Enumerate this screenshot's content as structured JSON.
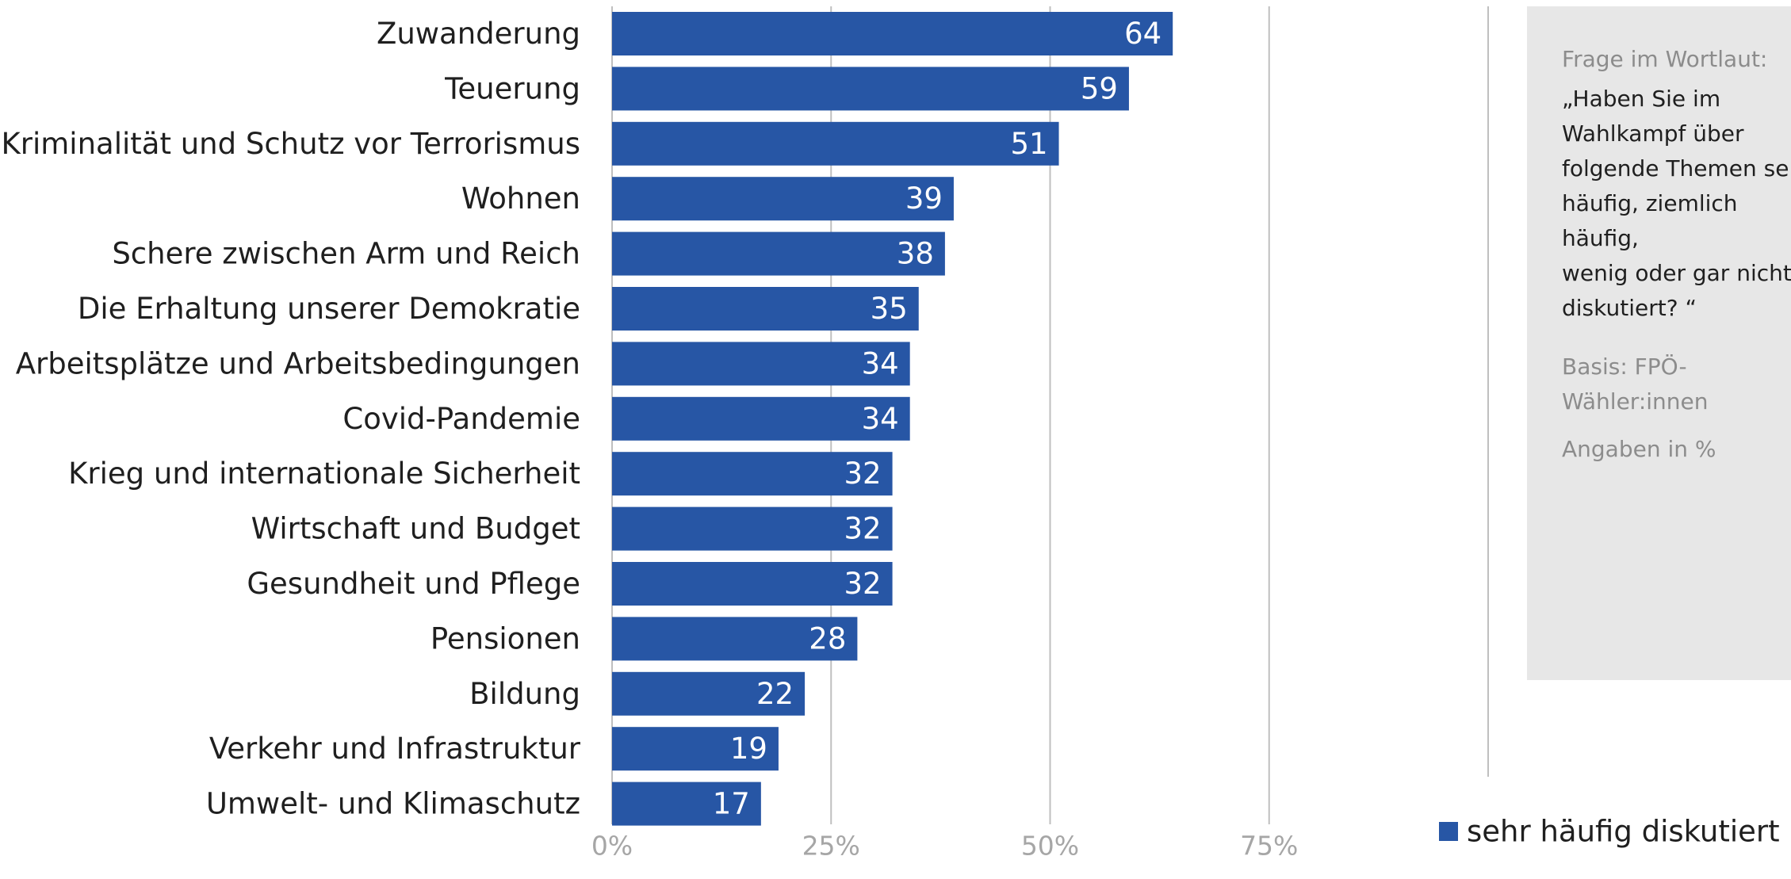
{
  "chart_data": {
    "type": "bar",
    "orientation": "horizontal",
    "categories": [
      "Zuwanderung",
      "Teuerung",
      "Kriminalität und Schutz vor Terrorismus",
      "Wohnen",
      "Schere zwischen Arm und Reich",
      "Die Erhaltung unserer Demokratie",
      "Arbeitsplätze und Arbeitsbedingungen",
      "Covid-Pandemie",
      "Krieg und internationale Sicherheit",
      "Wirtschaft und Budget",
      "Gesundheit und Pflege",
      "Pensionen",
      "Bildung",
      "Verkehr und Infrastruktur",
      "Umwelt- und Klimaschutz"
    ],
    "series": [
      {
        "name": "sehr häufig diskutiert",
        "values": [
          64,
          59,
          51,
          39,
          38,
          35,
          34,
          34,
          32,
          32,
          32,
          28,
          22,
          19,
          17
        ],
        "color": "#2756a5"
      }
    ],
    "xlim": [
      0,
      100
    ],
    "xticks": [
      "0%",
      "25%",
      "50%",
      "75%"
    ],
    "grid": true,
    "legend": "bottom-right",
    "data_labels": true
  },
  "note": {
    "heading": "Frage im Wortlaut:",
    "question": "„Haben Sie im\nWahlkampf über\nfolgende Themen sehr\nhäufig, ziemlich häufig,\nwenig oder gar nicht\ndiskutiert? “",
    "basis": "Basis: FPÖ-\nWähler:innen",
    "units": "Angaben in %"
  },
  "colors": {
    "bar": "#2756a5",
    "grid": "#bfbfbf",
    "note_background": "#e7e7e7"
  }
}
